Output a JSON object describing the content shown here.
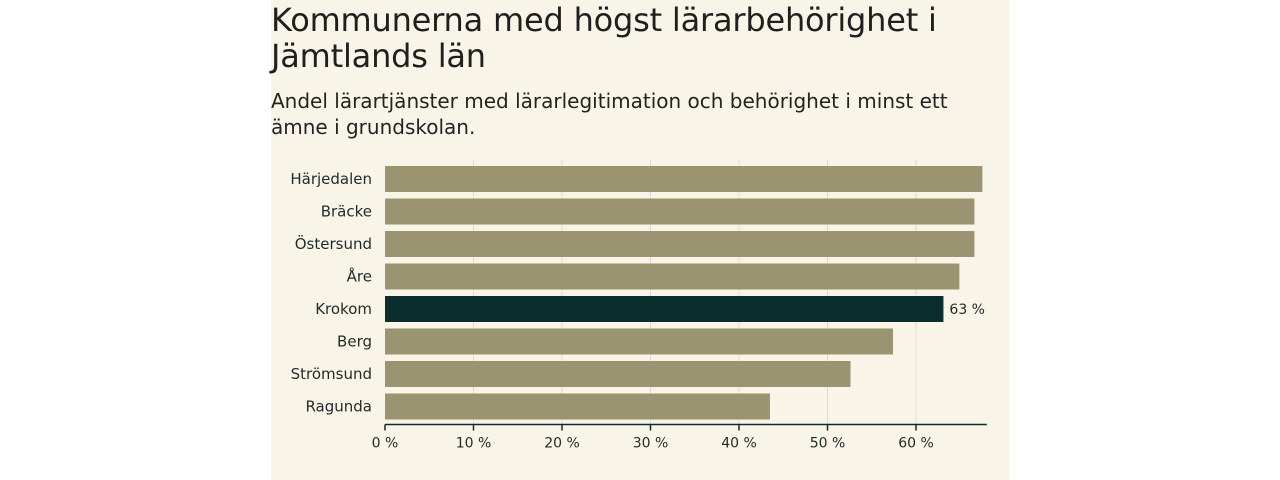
{
  "chart_data": {
    "type": "bar",
    "orientation": "horizontal",
    "title": "Kommunerna med högst lärarbehörighet i Jämtlands län",
    "subtitle": "Andel lärartjänster med lärarlegitimation och behörighet i minst ett ämne i grundskolan.",
    "categories": [
      "Härjedalen",
      "Bräcke",
      "Östersund",
      "Åre",
      "Krokom",
      "Berg",
      "Strömsund",
      "Ragunda"
    ],
    "values": [
      67.5,
      66.6,
      66.6,
      64.9,
      63.1,
      57.4,
      52.6,
      43.5
    ],
    "highlight": "Krokom",
    "data_labels": [
      {
        "category": "Krokom",
        "text": "63 %"
      }
    ],
    "xticks": [
      0,
      10,
      20,
      30,
      40,
      50,
      60
    ],
    "xtick_labels": [
      "0 %",
      "10 %",
      "20 %",
      "30 %",
      "40 %",
      "50 %",
      "60 %"
    ],
    "xlim": [
      0,
      68
    ],
    "grid": true,
    "colors": {
      "bar": "#9a9470",
      "highlight": "#0b2e2c",
      "grid": "#dedad0",
      "axis": "#0b2e2c",
      "background": "#f8f5e8"
    }
  }
}
